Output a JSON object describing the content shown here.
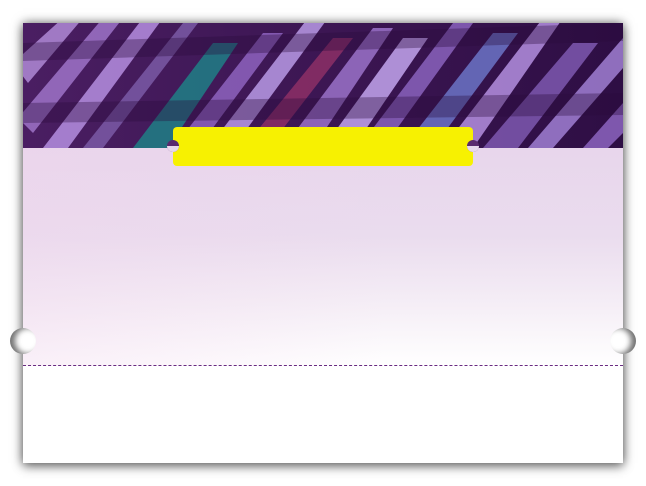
{
  "hero": {
    "image": "clothing-rack-photo"
  },
  "badge": {
    "label": "",
    "color": "#f7f101"
  },
  "colors": {
    "hero_overlay": "#3b1454",
    "panel": "#e8dcee",
    "divider": "#6a2c82"
  }
}
